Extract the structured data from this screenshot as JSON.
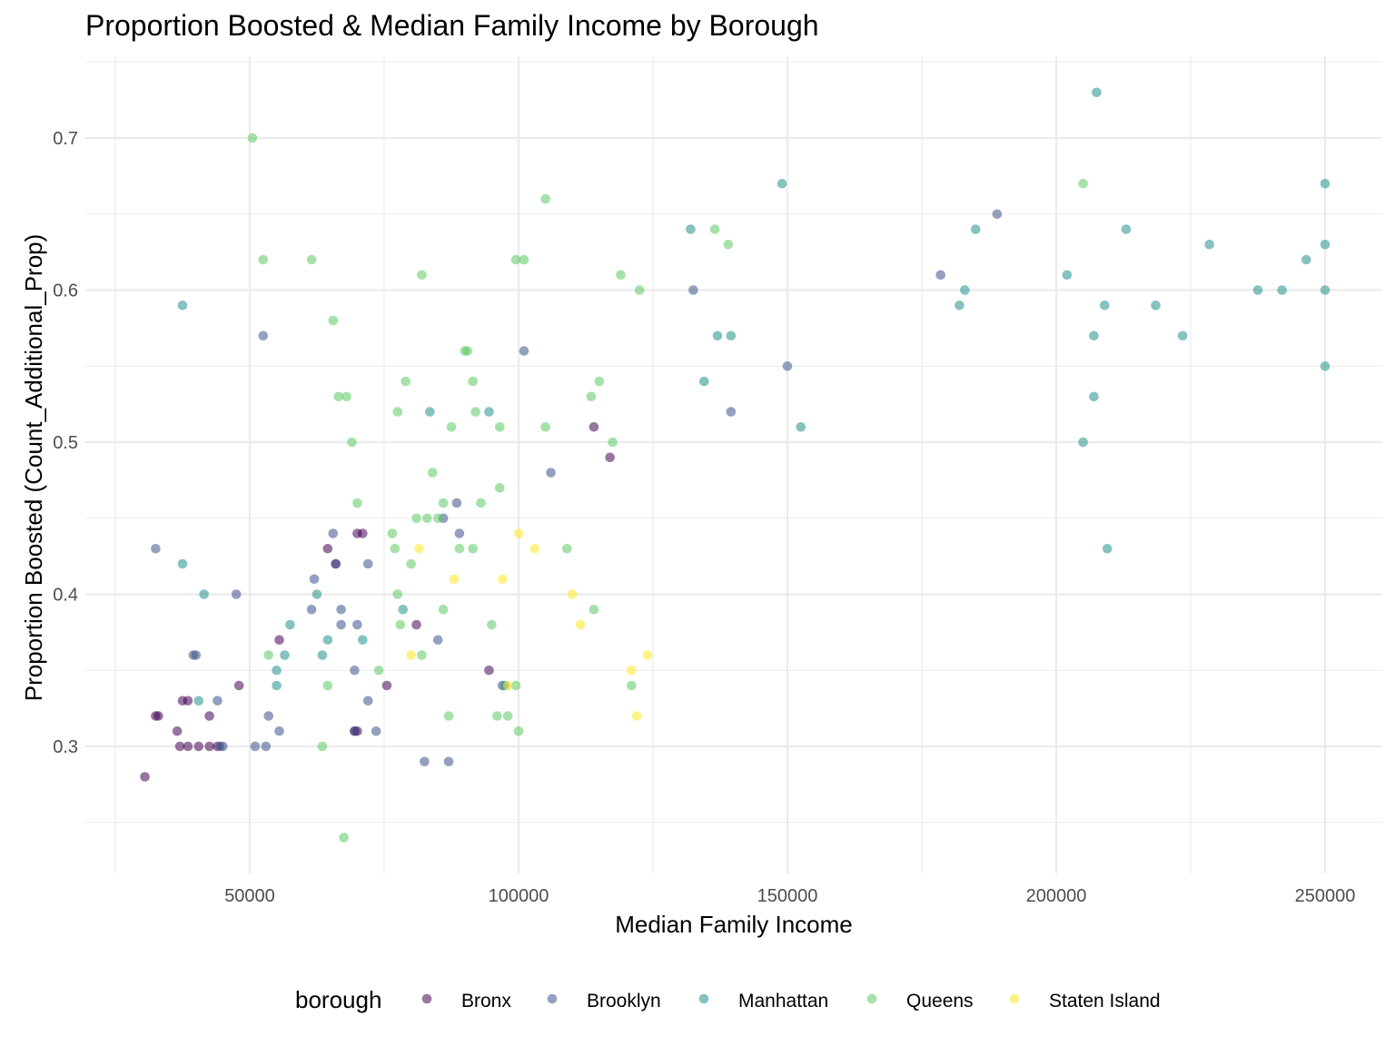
{
  "chart_data": {
    "type": "scatter",
    "title": "Proportion Boosted & Median Family Income by Borough",
    "xlabel": "Median Family Income",
    "ylabel": "Proportion Boosted (Count_Additional_Prop)",
    "xlim": [
      20000,
      260000
    ],
    "ylim": [
      0.215,
      0.755
    ],
    "x_ticks": [
      50000,
      100000,
      150000,
      200000,
      250000
    ],
    "x_tick_labels": [
      "50000",
      "100000",
      "150000",
      "200000",
      "250000"
    ],
    "y_ticks": [
      0.3,
      0.4,
      0.5,
      0.6,
      0.7
    ],
    "y_tick_labels": [
      "0.3",
      "0.4",
      "0.5",
      "0.6",
      "0.7"
    ],
    "grid": true,
    "legend": {
      "title": "borough",
      "position": "bottom"
    },
    "series": [
      {
        "name": "Bronx",
        "color": "#440154",
        "points": [
          [
            30500,
            0.28
          ],
          [
            36500,
            0.31
          ],
          [
            37000,
            0.3
          ],
          [
            33000,
            0.32
          ],
          [
            32500,
            0.32
          ],
          [
            37500,
            0.33
          ],
          [
            38500,
            0.33
          ],
          [
            38500,
            0.3
          ],
          [
            40500,
            0.3
          ],
          [
            42500,
            0.32
          ],
          [
            42500,
            0.3
          ],
          [
            44000,
            0.3
          ],
          [
            48000,
            0.34
          ],
          [
            55500,
            0.37
          ],
          [
            64500,
            0.43
          ],
          [
            66000,
            0.42
          ],
          [
            70000,
            0.44
          ],
          [
            71000,
            0.44
          ],
          [
            70000,
            0.31
          ],
          [
            69500,
            0.31
          ],
          [
            75500,
            0.34
          ],
          [
            81000,
            0.38
          ],
          [
            94500,
            0.35
          ],
          [
            114000,
            0.51
          ],
          [
            117000,
            0.49
          ]
        ]
      },
      {
        "name": "Brooklyn",
        "color": "#3b528b",
        "points": [
          [
            32500,
            0.43
          ],
          [
            39500,
            0.36
          ],
          [
            40000,
            0.36
          ],
          [
            44000,
            0.33
          ],
          [
            44500,
            0.3
          ],
          [
            45000,
            0.3
          ],
          [
            47500,
            0.4
          ],
          [
            51000,
            0.3
          ],
          [
            53000,
            0.3
          ],
          [
            53500,
            0.32
          ],
          [
            55500,
            0.31
          ],
          [
            52500,
            0.57
          ],
          [
            61500,
            0.39
          ],
          [
            62000,
            0.41
          ],
          [
            65500,
            0.44
          ],
          [
            66000,
            0.42
          ],
          [
            67000,
            0.39
          ],
          [
            67000,
            0.38
          ],
          [
            69500,
            0.35
          ],
          [
            70000,
            0.38
          ],
          [
            72000,
            0.42
          ],
          [
            72000,
            0.33
          ],
          [
            73500,
            0.31
          ],
          [
            69500,
            0.31
          ],
          [
            82500,
            0.29
          ],
          [
            85000,
            0.37
          ],
          [
            86000,
            0.45
          ],
          [
            87000,
            0.29
          ],
          [
            88500,
            0.46
          ],
          [
            89000,
            0.44
          ],
          [
            97000,
            0.34
          ],
          [
            101000,
            0.56
          ],
          [
            106000,
            0.48
          ],
          [
            132500,
            0.6
          ],
          [
            139500,
            0.52
          ],
          [
            150000,
            0.55
          ],
          [
            178500,
            0.61
          ],
          [
            189000,
            0.65
          ]
        ]
      },
      {
        "name": "Manhattan",
        "color": "#21908c",
        "points": [
          [
            37500,
            0.59
          ],
          [
            37500,
            0.42
          ],
          [
            40500,
            0.33
          ],
          [
            41500,
            0.4
          ],
          [
            55000,
            0.35
          ],
          [
            55000,
            0.34
          ],
          [
            56500,
            0.36
          ],
          [
            57500,
            0.38
          ],
          [
            62500,
            0.4
          ],
          [
            63500,
            0.36
          ],
          [
            64500,
            0.37
          ],
          [
            71000,
            0.37
          ],
          [
            78500,
            0.39
          ],
          [
            83500,
            0.52
          ],
          [
            94500,
            0.52
          ],
          [
            97500,
            0.34
          ],
          [
            132000,
            0.64
          ],
          [
            134500,
            0.54
          ],
          [
            137000,
            0.57
          ],
          [
            139500,
            0.57
          ],
          [
            149000,
            0.67
          ],
          [
            152500,
            0.51
          ],
          [
            182000,
            0.59
          ],
          [
            183000,
            0.6
          ],
          [
            185000,
            0.64
          ],
          [
            202000,
            0.61
          ],
          [
            205000,
            0.5
          ],
          [
            207000,
            0.57
          ],
          [
            207000,
            0.53
          ],
          [
            207500,
            0.73
          ],
          [
            209000,
            0.59
          ],
          [
            209500,
            0.43
          ],
          [
            213000,
            0.64
          ],
          [
            218500,
            0.59
          ],
          [
            223500,
            0.57
          ],
          [
            228500,
            0.63
          ],
          [
            237500,
            0.6
          ],
          [
            242000,
            0.6
          ],
          [
            246500,
            0.62
          ],
          [
            250000,
            0.6
          ],
          [
            250000,
            0.67
          ],
          [
            250000,
            0.63
          ],
          [
            250000,
            0.55
          ]
        ]
      },
      {
        "name": "Queens",
        "color": "#5dc863",
        "points": [
          [
            50500,
            0.7
          ],
          [
            52500,
            0.62
          ],
          [
            53500,
            0.36
          ],
          [
            61500,
            0.62
          ],
          [
            63500,
            0.3
          ],
          [
            64500,
            0.34
          ],
          [
            65500,
            0.58
          ],
          [
            66500,
            0.53
          ],
          [
            67500,
            0.24
          ],
          [
            68000,
            0.53
          ],
          [
            69000,
            0.5
          ],
          [
            70000,
            0.46
          ],
          [
            74000,
            0.35
          ],
          [
            76500,
            0.44
          ],
          [
            77000,
            0.43
          ],
          [
            77500,
            0.52
          ],
          [
            77500,
            0.4
          ],
          [
            78000,
            0.38
          ],
          [
            79000,
            0.54
          ],
          [
            80000,
            0.42
          ],
          [
            81000,
            0.45
          ],
          [
            82000,
            0.36
          ],
          [
            82000,
            0.61
          ],
          [
            83000,
            0.45
          ],
          [
            84000,
            0.48
          ],
          [
            85000,
            0.45
          ],
          [
            86000,
            0.39
          ],
          [
            86000,
            0.46
          ],
          [
            87000,
            0.32
          ],
          [
            87500,
            0.51
          ],
          [
            89000,
            0.43
          ],
          [
            90500,
            0.56
          ],
          [
            90000,
            0.56
          ],
          [
            91500,
            0.54
          ],
          [
            91500,
            0.43
          ],
          [
            92000,
            0.52
          ],
          [
            93000,
            0.46
          ],
          [
            95000,
            0.38
          ],
          [
            96000,
            0.32
          ],
          [
            96500,
            0.51
          ],
          [
            96500,
            0.47
          ],
          [
            98000,
            0.32
          ],
          [
            99500,
            0.62
          ],
          [
            99500,
            0.34
          ],
          [
            100000,
            0.31
          ],
          [
            101000,
            0.62
          ],
          [
            105000,
            0.51
          ],
          [
            105000,
            0.66
          ],
          [
            109000,
            0.43
          ],
          [
            113500,
            0.53
          ],
          [
            114000,
            0.39
          ],
          [
            115000,
            0.54
          ],
          [
            117500,
            0.5
          ],
          [
            119000,
            0.61
          ],
          [
            121000,
            0.34
          ],
          [
            122500,
            0.6
          ],
          [
            136500,
            0.64
          ],
          [
            139000,
            0.63
          ],
          [
            205000,
            0.67
          ]
        ]
      },
      {
        "name": "Staten Island",
        "color": "#fde725",
        "points": [
          [
            80000,
            0.36
          ],
          [
            81500,
            0.43
          ],
          [
            88000,
            0.41
          ],
          [
            97000,
            0.41
          ],
          [
            98000,
            0.34
          ],
          [
            100000,
            0.44
          ],
          [
            103000,
            0.43
          ],
          [
            110000,
            0.4
          ],
          [
            111500,
            0.38
          ],
          [
            121000,
            0.35
          ],
          [
            122000,
            0.32
          ],
          [
            124000,
            0.36
          ]
        ]
      }
    ]
  }
}
